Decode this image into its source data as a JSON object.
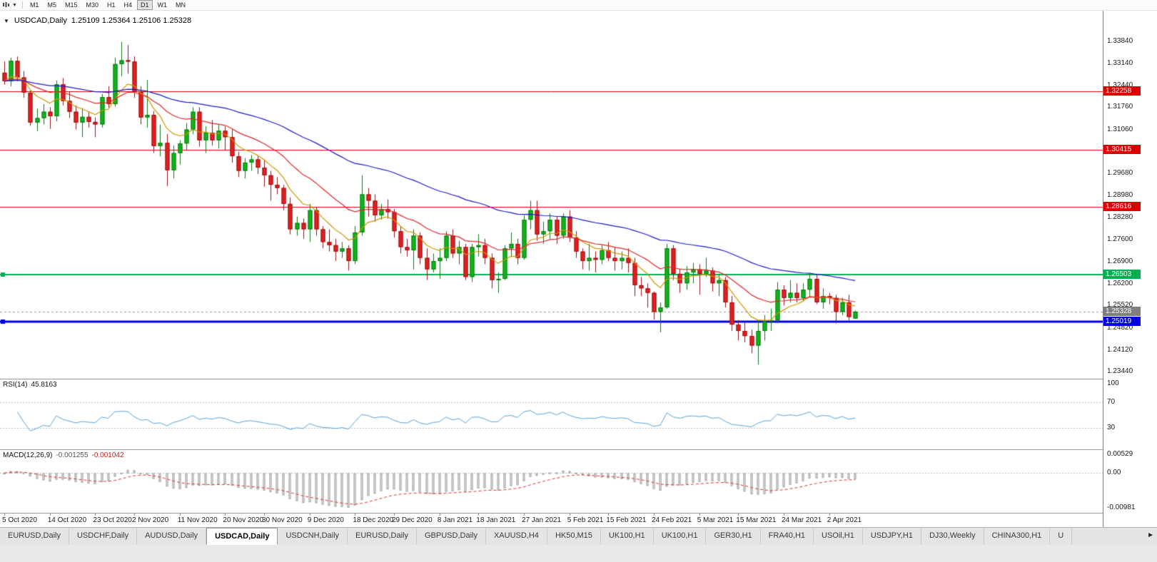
{
  "toolbar": {
    "timeframes": [
      "M1",
      "M5",
      "M15",
      "M30",
      "H1",
      "H4",
      "D1",
      "W1",
      "MN"
    ],
    "active_timeframe": "D1"
  },
  "icons": {
    "dropdown_arrow": "▼",
    "one_click_arrow": "▼",
    "tab_scroll_right": "►"
  },
  "chart": {
    "title": "USDCAD,Daily",
    "ohlc_text": "1.25109 1.25364 1.25106 1.25328",
    "price_axis_labels": [
      "1.33840",
      "1.33140",
      "1.32440",
      "1.31760",
      "1.31060",
      "1.30360",
      "1.29680",
      "1.28980",
      "1.28280",
      "1.27600",
      "1.26900",
      "1.26200",
      "1.25520",
      "1.24820",
      "1.24120",
      "1.23440"
    ],
    "hlines": [
      {
        "price": 1.32258,
        "label": "1.32258",
        "color": "#dd0000",
        "width": 1,
        "handles": false
      },
      {
        "price": 1.30415,
        "label": "1.30415",
        "color": "#dd0000",
        "width": 1,
        "handles": false
      },
      {
        "price": 1.28616,
        "label": "1.28616",
        "color": "#dd0000",
        "width": 1,
        "handles": false
      },
      {
        "price": 1.26503,
        "label": "1.26503",
        "color": "#00b050",
        "width": 2,
        "handles": true
      },
      {
        "price": 1.25019,
        "label": "1.25019",
        "color": "#0000e0",
        "width": 3,
        "handles": true
      }
    ],
    "current_price": {
      "value": 1.25328,
      "label": "1.25328",
      "box_color": "#7f7f7f"
    },
    "colors": {
      "up_fill": "#13b31c",
      "up_stroke": "#077a0e",
      "down_fill": "#e32020",
      "down_stroke": "#991111",
      "ma_fast": "#cf9700",
      "ma_mid": "#e02828",
      "ma_slow": "#1a1acd",
      "rsi_line": "#59a2d8",
      "macd_hist_fill": "#f0f0f0",
      "macd_hist_stroke": "#9a9a9a",
      "macd_signal": "#e03030",
      "level_dotted": "#bdbdbd",
      "current_price_line": "#a0a0a0"
    }
  },
  "rsi": {
    "label": "RSI(14)",
    "value": "45.8163",
    "period": 14,
    "levels": [
      70,
      30
    ],
    "axis_labels": [
      {
        "text": "100",
        "value": 100
      },
      {
        "text": "70",
        "value": 70
      },
      {
        "text": "30",
        "value": 30
      }
    ]
  },
  "macd": {
    "label": "MACD(12,26,9)",
    "value_main": "-0.001255",
    "value_signal": "-0.001042",
    "fast": 12,
    "slow": 26,
    "signal": 9,
    "axis_labels": [
      {
        "text": "0.00529",
        "value": 0.00529
      },
      {
        "text": "0.00",
        "value": 0
      },
      {
        "text": "-0.00981",
        "value": -0.00981
      }
    ]
  },
  "chart_data": {
    "type": "candlestick",
    "symbol": "USDCAD",
    "timeframe": "Daily",
    "moving_averages": [
      {
        "period": 8
      },
      {
        "period": 20
      },
      {
        "period": 55
      }
    ],
    "x_axis_labels": [
      {
        "text": "5 Oct 2020",
        "index": 0
      },
      {
        "text": "14 Oct 2020",
        "index": 7
      },
      {
        "text": "23 Oct 2020",
        "index": 14
      },
      {
        "text": "2 Nov 2020",
        "index": 20
      },
      {
        "text": "11 Nov 2020",
        "index": 27
      },
      {
        "text": "20 Nov 2020",
        "index": 34
      },
      {
        "text": "30 Nov 2020",
        "index": 40
      },
      {
        "text": "9 Dec 2020",
        "index": 47
      },
      {
        "text": "18 Dec 2020",
        "index": 54
      },
      {
        "text": "29 Dec 2020",
        "index": 60
      },
      {
        "text": "8 Jan 2021",
        "index": 67
      },
      {
        "text": "18 Jan 2021",
        "index": 73
      },
      {
        "text": "27 Jan 2021",
        "index": 80
      },
      {
        "text": "5 Feb 2021",
        "index": 87
      },
      {
        "text": "15 Feb 2021",
        "index": 93
      },
      {
        "text": "24 Feb 2021",
        "index": 100
      },
      {
        "text": "5 Mar 2021",
        "index": 107
      },
      {
        "text": "15 Mar 2021",
        "index": 113
      },
      {
        "text": "24 Mar 2021",
        "index": 120
      },
      {
        "text": "2 Apr 2021",
        "index": 127
      }
    ],
    "ohlc": [
      [
        1.3285,
        1.332,
        1.3247,
        1.3258
      ],
      [
        1.3258,
        1.3332,
        1.3242,
        1.3322
      ],
      [
        1.3322,
        1.3336,
        1.3258,
        1.327
      ],
      [
        1.327,
        1.329,
        1.3206,
        1.3222
      ],
      [
        1.3222,
        1.3228,
        1.3118,
        1.3128
      ],
      [
        1.3128,
        1.3172,
        1.3101,
        1.3142
      ],
      [
        1.3142,
        1.3186,
        1.3122,
        1.3162
      ],
      [
        1.3162,
        1.3176,
        1.3108,
        1.3148
      ],
      [
        1.3148,
        1.326,
        1.3132,
        1.3248
      ],
      [
        1.3248,
        1.3268,
        1.3182,
        1.3196
      ],
      [
        1.3196,
        1.3226,
        1.3142,
        1.3162
      ],
      [
        1.3162,
        1.3182,
        1.3106,
        1.3128
      ],
      [
        1.3128,
        1.3174,
        1.3082,
        1.3146
      ],
      [
        1.3146,
        1.3162,
        1.3112,
        1.313
      ],
      [
        1.313,
        1.3144,
        1.3082,
        1.3122
      ],
      [
        1.3122,
        1.3218,
        1.3112,
        1.3208
      ],
      [
        1.3208,
        1.3242,
        1.3172,
        1.3186
      ],
      [
        1.3186,
        1.3332,
        1.3178,
        1.3312
      ],
      [
        1.3312,
        1.3382,
        1.3274,
        1.3324
      ],
      [
        1.3324,
        1.3372,
        1.3282,
        1.332
      ],
      [
        1.332,
        1.3336,
        1.3206,
        1.3224
      ],
      [
        1.3224,
        1.3242,
        1.3122,
        1.3144
      ],
      [
        1.3144,
        1.3262,
        1.3112,
        1.3152
      ],
      [
        1.3152,
        1.3164,
        1.3032,
        1.3054
      ],
      [
        1.3054,
        1.3122,
        1.3022,
        1.3064
      ],
      [
        1.3064,
        1.3092,
        1.2928,
        1.2978
      ],
      [
        1.2978,
        1.3056,
        1.2952,
        1.3032
      ],
      [
        1.3032,
        1.3072,
        1.2996,
        1.3062
      ],
      [
        1.3062,
        1.3126,
        1.3042,
        1.3106
      ],
      [
        1.3106,
        1.3176,
        1.3092,
        1.3162
      ],
      [
        1.3162,
        1.3176,
        1.3052,
        1.3072
      ],
      [
        1.3072,
        1.3116,
        1.3032,
        1.3096
      ],
      [
        1.3096,
        1.3136,
        1.3056,
        1.3072
      ],
      [
        1.3072,
        1.3122,
        1.3046,
        1.3102
      ],
      [
        1.3102,
        1.3116,
        1.3042,
        1.3082
      ],
      [
        1.3082,
        1.3106,
        1.3002,
        1.3022
      ],
      [
        1.3022,
        1.3036,
        1.2956,
        1.2976
      ],
      [
        1.2976,
        1.3016,
        1.2952,
        1.3002
      ],
      [
        1.3002,
        1.3026,
        1.2976,
        1.3012
      ],
      [
        1.3012,
        1.3022,
        1.2966,
        1.2986
      ],
      [
        1.2986,
        1.3012,
        1.2926,
        1.2962
      ],
      [
        1.2962,
        1.2976,
        1.2882,
        1.2932
      ],
      [
        1.2932,
        1.2956,
        1.2902,
        1.2922
      ],
      [
        1.2922,
        1.2932,
        1.2852,
        1.2872
      ],
      [
        1.2872,
        1.2892,
        1.2776,
        1.2792
      ],
      [
        1.2792,
        1.2832,
        1.2772,
        1.2812
      ],
      [
        1.2812,
        1.2826,
        1.2762,
        1.2792
      ],
      [
        1.2792,
        1.2872,
        1.2752,
        1.2852
      ],
      [
        1.2852,
        1.2862,
        1.2772,
        1.2792
      ],
      [
        1.2792,
        1.2802,
        1.2732,
        1.2752
      ],
      [
        1.2752,
        1.2792,
        1.2722,
        1.2742
      ],
      [
        1.2742,
        1.2762,
        1.2692,
        1.2722
      ],
      [
        1.2722,
        1.2752,
        1.2702,
        1.2732
      ],
      [
        1.2732,
        1.2742,
        1.2662,
        1.2692
      ],
      [
        1.2692,
        1.2802,
        1.2682,
        1.2782
      ],
      [
        1.2782,
        1.2962,
        1.2772,
        1.2902
      ],
      [
        1.2902,
        1.2922,
        1.2832,
        1.2882
      ],
      [
        1.2882,
        1.2902,
        1.2816,
        1.2836
      ],
      [
        1.2836,
        1.2872,
        1.2822,
        1.2856
      ],
      [
        1.2856,
        1.2886,
        1.2826,
        1.2846
      ],
      [
        1.2846,
        1.2856,
        1.2766,
        1.2786
      ],
      [
        1.2786,
        1.2802,
        1.2716,
        1.2736
      ],
      [
        1.2736,
        1.2762,
        1.2706,
        1.2726
      ],
      [
        1.2726,
        1.2792,
        1.2666,
        1.2772
      ],
      [
        1.2772,
        1.2782,
        1.2682,
        1.2702
      ],
      [
        1.2702,
        1.2732,
        1.2632,
        1.2666
      ],
      [
        1.2666,
        1.2716,
        1.2656,
        1.2692
      ],
      [
        1.2692,
        1.2732,
        1.2636,
        1.2702
      ],
      [
        1.2702,
        1.2786,
        1.2692,
        1.2772
      ],
      [
        1.2772,
        1.2792,
        1.2702,
        1.2716
      ],
      [
        1.2716,
        1.2756,
        1.2682,
        1.2736
      ],
      [
        1.2736,
        1.2746,
        1.2632,
        1.2642
      ],
      [
        1.2642,
        1.2746,
        1.2626,
        1.2736
      ],
      [
        1.2736,
        1.2776,
        1.2706,
        1.2742
      ],
      [
        1.2742,
        1.2762,
        1.2682,
        1.2702
      ],
      [
        1.2702,
        1.2716,
        1.2606,
        1.2632
      ],
      [
        1.2632,
        1.2656,
        1.2592,
        1.2636
      ],
      [
        1.2636,
        1.2742,
        1.2632,
        1.2732
      ],
      [
        1.2732,
        1.2782,
        1.2706,
        1.2746
      ],
      [
        1.2746,
        1.2762,
        1.2682,
        1.2702
      ],
      [
        1.2702,
        1.2836,
        1.2696,
        1.2822
      ],
      [
        1.2822,
        1.2882,
        1.2792,
        1.2852
      ],
      [
        1.2852,
        1.2882,
        1.2756,
        1.2776
      ],
      [
        1.2776,
        1.2816,
        1.2746,
        1.2786
      ],
      [
        1.2786,
        1.2842,
        1.2762,
        1.2822
      ],
      [
        1.2822,
        1.2832,
        1.2746,
        1.2772
      ],
      [
        1.2772,
        1.2842,
        1.2762,
        1.2832
      ],
      [
        1.2832,
        1.2852,
        1.2752,
        1.2766
      ],
      [
        1.2766,
        1.2786,
        1.2702,
        1.2722
      ],
      [
        1.2722,
        1.2732,
        1.2666,
        1.2692
      ],
      [
        1.2692,
        1.2746,
        1.2662,
        1.2702
      ],
      [
        1.2702,
        1.2722,
        1.2656,
        1.2696
      ],
      [
        1.2696,
        1.2742,
        1.2682,
        1.2726
      ],
      [
        1.2726,
        1.2752,
        1.2692,
        1.2702
      ],
      [
        1.2702,
        1.2736,
        1.2662,
        1.2692
      ],
      [
        1.2692,
        1.2722,
        1.2666,
        1.2702
      ],
      [
        1.2702,
        1.2732,
        1.2656,
        1.2686
      ],
      [
        1.2686,
        1.2702,
        1.2582,
        1.2616
      ],
      [
        1.2616,
        1.2642,
        1.2582,
        1.2606
      ],
      [
        1.2606,
        1.2622,
        1.2546,
        1.2592
      ],
      [
        1.2592,
        1.2596,
        1.2508,
        1.2532
      ],
      [
        1.2532,
        1.2562,
        1.2468,
        1.2546
      ],
      [
        1.2546,
        1.2746,
        1.2542,
        1.2732
      ],
      [
        1.2732,
        1.2742,
        1.2632,
        1.2652
      ],
      [
        1.2652,
        1.2666,
        1.2592,
        1.2622
      ],
      [
        1.2622,
        1.2676,
        1.2602,
        1.2656
      ],
      [
        1.2656,
        1.2686,
        1.2622,
        1.2666
      ],
      [
        1.2666,
        1.2682,
        1.2586,
        1.2652
      ],
      [
        1.2652,
        1.2702,
        1.2642,
        1.2662
      ],
      [
        1.2662,
        1.2672,
        1.2596,
        1.2622
      ],
      [
        1.2622,
        1.2652,
        1.2582,
        1.2632
      ],
      [
        1.2632,
        1.2642,
        1.2546,
        1.2562
      ],
      [
        1.2562,
        1.2582,
        1.2472,
        1.2492
      ],
      [
        1.2492,
        1.2506,
        1.2442,
        1.2472
      ],
      [
        1.2472,
        1.2502,
        1.2436,
        1.2456
      ],
      [
        1.2456,
        1.2476,
        1.2402,
        1.2426
      ],
      [
        1.2426,
        1.2506,
        1.2366,
        1.2472
      ],
      [
        1.2472,
        1.2522,
        1.2442,
        1.2502
      ],
      [
        1.2502,
        1.2542,
        1.2472,
        1.2506
      ],
      [
        1.2506,
        1.2626,
        1.2496,
        1.2602
      ],
      [
        1.2602,
        1.2616,
        1.2552,
        1.2576
      ],
      [
        1.2576,
        1.2632,
        1.2562,
        1.2592
      ],
      [
        1.2592,
        1.2622,
        1.2562,
        1.2576
      ],
      [
        1.2576,
        1.2622,
        1.2566,
        1.2602
      ],
      [
        1.2602,
        1.2652,
        1.2582,
        1.2636
      ],
      [
        1.2636,
        1.2652,
        1.2556,
        1.2562
      ],
      [
        1.2562,
        1.2606,
        1.2542,
        1.2582
      ],
      [
        1.2582,
        1.2592,
        1.2556,
        1.2576
      ],
      [
        1.2576,
        1.2586,
        1.2496,
        1.2532
      ],
      [
        1.2532,
        1.2576,
        1.2522,
        1.2562
      ],
      [
        1.2562,
        1.2586,
        1.2506,
        1.2516
      ],
      [
        1.25109,
        1.25364,
        1.25106,
        1.25328
      ]
    ]
  },
  "tabs": {
    "scroll_right_arrow": "►",
    "items": [
      {
        "label": "EURUSD,Daily",
        "active": false
      },
      {
        "label": "USDCHF,Daily",
        "active": false
      },
      {
        "label": "AUDUSD,Daily",
        "active": false
      },
      {
        "label": "USDCAD,Daily",
        "active": true
      },
      {
        "label": "USDCNH,Daily",
        "active": false
      },
      {
        "label": "EURUSD,Daily",
        "active": false
      },
      {
        "label": "GBPUSD,Daily",
        "active": false
      },
      {
        "label": "XAUUSD,H4",
        "active": false
      },
      {
        "label": "HK50,M15",
        "active": false
      },
      {
        "label": "UK100,H1",
        "active": false
      },
      {
        "label": "UK100,H1",
        "active": false
      },
      {
        "label": "GER30,H1",
        "active": false
      },
      {
        "label": "FRA40,H1",
        "active": false
      },
      {
        "label": "USOil,H1",
        "active": false
      },
      {
        "label": "USDJPY,H1",
        "active": false
      },
      {
        "label": "DJ30,Weekly",
        "active": false
      },
      {
        "label": "CHINA300,H1",
        "active": false
      },
      {
        "label": "U",
        "active": false
      }
    ]
  }
}
